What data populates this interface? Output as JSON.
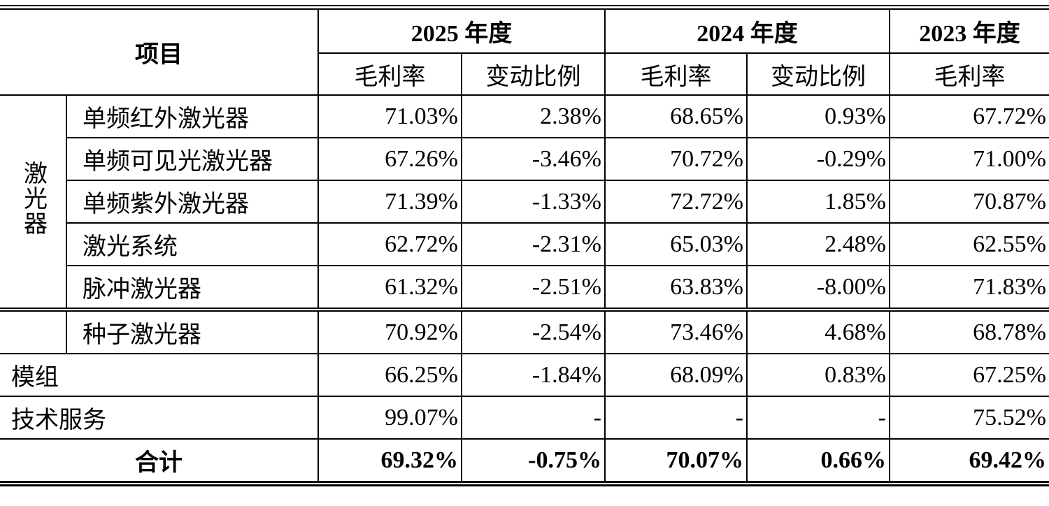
{
  "header": {
    "item": "项目",
    "years": [
      "2025 年度",
      "2024 年度",
      "2023 年度"
    ],
    "columns": [
      "毛利率",
      "变动比例",
      "毛利率",
      "变动比例",
      "毛利率"
    ]
  },
  "group": "激光器",
  "rows": [
    {
      "label": "单频红外激光器",
      "values": [
        "71.03%",
        "2.38%",
        "68.65%",
        "0.93%",
        "67.72%"
      ]
    },
    {
      "label": "单频可见光激光器",
      "values": [
        "67.26%",
        "-3.46%",
        "70.72%",
        "-0.29%",
        "71.00%"
      ]
    },
    {
      "label": "单频紫外激光器",
      "values": [
        "71.39%",
        "-1.33%",
        "72.72%",
        "1.85%",
        "70.87%"
      ]
    },
    {
      "label": "激光系统",
      "values": [
        "62.72%",
        "-2.31%",
        "65.03%",
        "2.48%",
        "62.55%"
      ]
    },
    {
      "label": "脉冲激光器",
      "values": [
        "61.32%",
        "-2.51%",
        "63.83%",
        "-8.00%",
        "71.83%"
      ]
    },
    {
      "label": "种子激光器",
      "values": [
        "70.92%",
        "-2.54%",
        "73.46%",
        "4.68%",
        "68.78%"
      ]
    },
    {
      "label": "模组",
      "values": [
        "66.25%",
        "-1.84%",
        "68.09%",
        "0.83%",
        "67.25%"
      ]
    },
    {
      "label": "技术服务",
      "values": [
        "99.07%",
        "-",
        "-",
        "-",
        "75.52%"
      ]
    }
  ],
  "total": {
    "label": "合计",
    "values": [
      "69.32%",
      "-0.75%",
      "70.07%",
      "0.66%",
      "69.42%"
    ]
  }
}
